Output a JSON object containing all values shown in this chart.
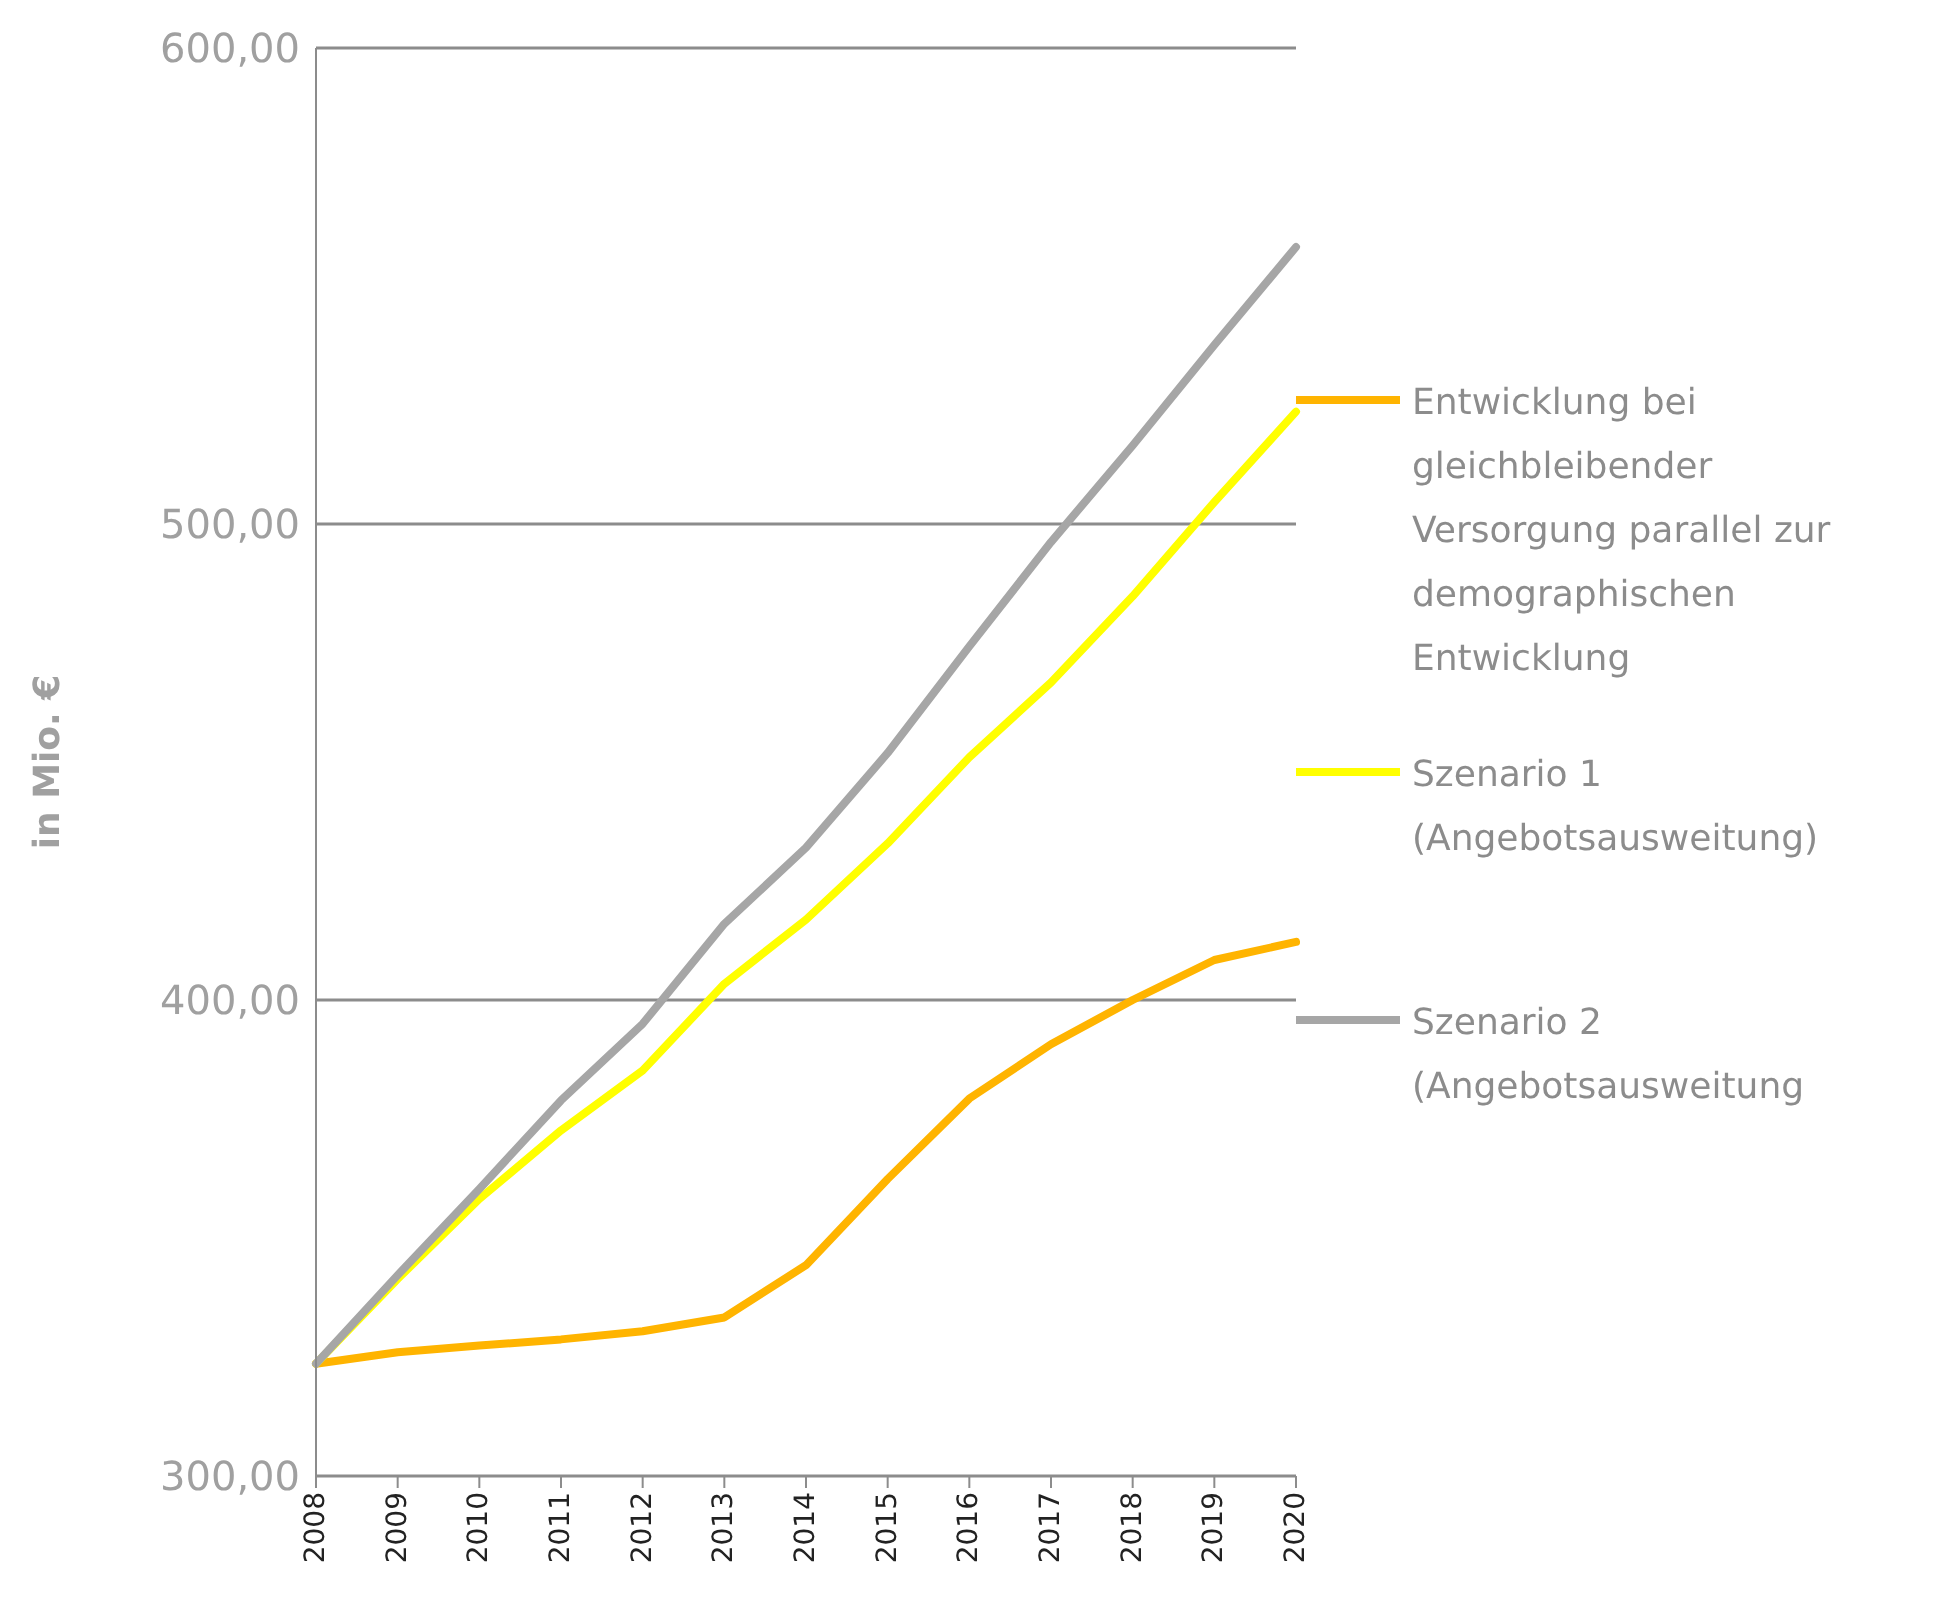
{
  "chart_data": {
    "type": "line",
    "ylabel": "in Mio. €",
    "categories": [
      "2008",
      "2009",
      "2010",
      "2011",
      "2012",
      "2013",
      "2014",
      "2015",
      "2016",
      "2017",
      "2018",
      "2019",
      "2020"
    ],
    "series": [
      {
        "name": "Entwicklung bei gleichbleibender Versorgung parallel zur demographischen Entwicklung",
        "color": "#ffb400",
        "values": [
          323.6,
          326,
          327.4,
          328.7,
          330.4,
          333.3,
          344.3,
          362.4,
          379.3,
          390.7,
          400,
          408.4,
          412.2
        ]
      },
      {
        "name": "Szenario 1 (Angebotsausweitung)",
        "color": "#ffff00",
        "values": [
          323.6,
          341.4,
          358.2,
          372.6,
          385.2,
          403.4,
          416.9,
          432.9,
          451,
          466.7,
          484.8,
          504.6,
          523.6
        ]
      },
      {
        "name": "Szenario 2 (Angebotsausweitung",
        "color": "#a6a6a6",
        "values": [
          323.6,
          342.2,
          360.3,
          378.9,
          395,
          416,
          432,
          451.9,
          474.3,
          496.2,
          516.5,
          537.6,
          558.2
        ]
      }
    ],
    "ylim": [
      300,
      600
    ],
    "yticks": [
      {
        "value": 300,
        "label": "300,00"
      },
      {
        "value": 400,
        "label": "400,00"
      },
      {
        "value": 500,
        "label": "500,00"
      },
      {
        "value": 600,
        "label": "600,00"
      }
    ],
    "grid": "y",
    "legend": "right"
  }
}
